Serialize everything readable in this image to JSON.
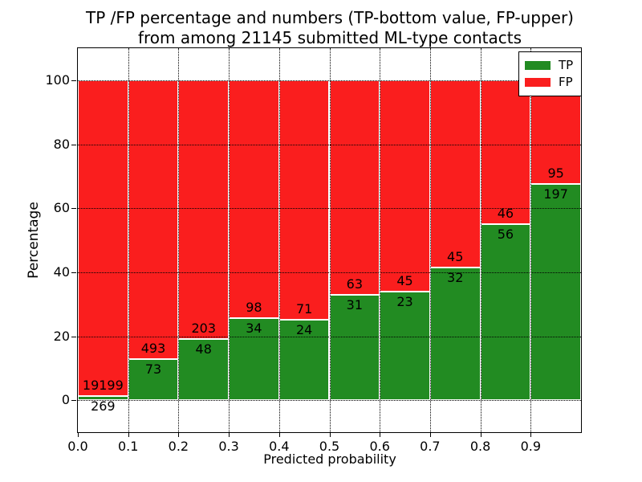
{
  "chart_data": {
    "type": "bar",
    "stacked": true,
    "normalized_to_percent": true,
    "title_line1": "TP /FP percentage and numbers (TP-bottom value, FP-upper)",
    "title_line2": "from among 21145 submitted ML-type contacts",
    "total_contacts": 21145,
    "xlabel": "Predicted probability",
    "ylabel": "Percentage",
    "x_tick_labels": [
      "0.0",
      "0.1",
      "0.2",
      "0.3",
      "0.4",
      "0.5",
      "0.6",
      "0.7",
      "0.8",
      "0.9"
    ],
    "y_ticks": [
      0,
      20,
      40,
      60,
      80,
      100
    ],
    "xlim": [
      0.0,
      1.0
    ],
    "ylim": [
      -10,
      110
    ],
    "grid": "dotted black, horizontal and vertical",
    "legend_position": "upper right",
    "colors": {
      "tp_green": "#228b22",
      "fp_red": "#fa1e1e"
    },
    "series": [
      {
        "name": "TP",
        "values": [
          269,
          73,
          48,
          34,
          24,
          31,
          23,
          32,
          56,
          197
        ]
      },
      {
        "name": "FP",
        "values": [
          19199,
          493,
          203,
          98,
          71,
          63,
          45,
          45,
          46,
          95
        ]
      }
    ]
  }
}
